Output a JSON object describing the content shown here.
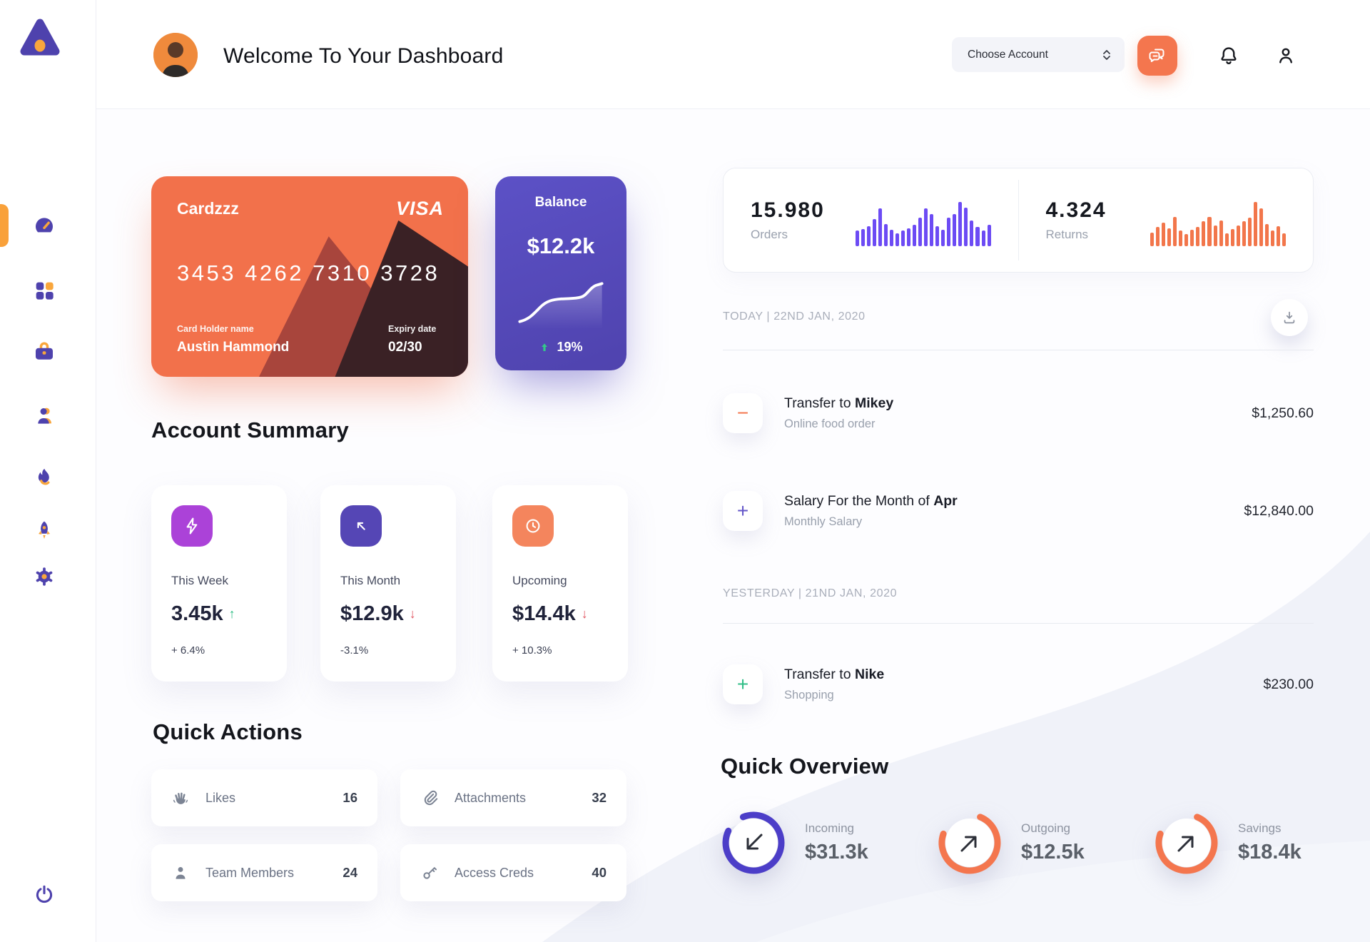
{
  "sidebar": {
    "items": [
      {
        "icon": "dashboard-icon",
        "active": true
      },
      {
        "icon": "grid-icon"
      },
      {
        "icon": "briefcase-icon"
      },
      {
        "icon": "user-icon"
      },
      {
        "icon": "flame-icon"
      },
      {
        "icon": "rocket-icon"
      },
      {
        "icon": "gear-icon"
      }
    ],
    "footer_icon": "power-icon",
    "accent_color": "#F9A13A",
    "icon_color": "#4E42AD"
  },
  "header": {
    "title": "Welcome To Your Dashboard",
    "account_select": {
      "label": "Choose Account"
    },
    "chat_icon": "chat-icon",
    "bell_icon": "bell-icon",
    "profile_icon": "profile-icon"
  },
  "credit_card": {
    "name": "Cardzzz",
    "brand": "VISA",
    "number": "3453 4262 7310 3728",
    "holder_label": "Card Holder name",
    "holder_name": "Austin Hammond",
    "expiry_label": "Expiry date",
    "expiry": "02/30",
    "color": "#F2714B"
  },
  "balance_card": {
    "title": "Balance",
    "amount": "$12.2k",
    "change": "19%",
    "change_color": "#35C789",
    "color": "#574CBE"
  },
  "stats_card": {
    "orders": {
      "value": "15.980",
      "label": "Orders"
    },
    "returns": {
      "value": "4.324",
      "label": "Returns"
    }
  },
  "chart_data": [
    {
      "type": "bar",
      "name": "orders-mini-chart",
      "color": "#6C4BF4",
      "values": [
        34,
        38,
        44,
        60,
        84,
        50,
        36,
        28,
        34,
        40,
        48,
        64,
        84,
        72,
        44,
        36,
        64,
        72,
        100,
        86,
        58,
        42,
        34,
        48
      ]
    },
    {
      "type": "bar",
      "name": "returns-mini-chart",
      "color": "#F2764B",
      "values": [
        30,
        42,
        52,
        40,
        66,
        34,
        26,
        36,
        42,
        56,
        66,
        46,
        58,
        28,
        38,
        46,
        56,
        64,
        100,
        84,
        50,
        34,
        44,
        28
      ]
    },
    {
      "type": "line",
      "name": "balance-sparkline",
      "trend": "rising",
      "change": "19%"
    }
  ],
  "account_summary": {
    "title": "Account Summary",
    "tiles": [
      {
        "icon": "lightning-icon",
        "icon_color": "#AB42D8",
        "label": "This Week",
        "value": "3.45k",
        "trend_arrow": "↑",
        "trend_color": "#2EBD85",
        "change": "+ 6.4%"
      },
      {
        "icon": "trend-arrow-icon",
        "icon_color": "#5546B5",
        "label": "This Month",
        "value": "$12.9k",
        "trend_arrow": "↓",
        "trend_color": "#E0525E",
        "change": "-3.1%"
      },
      {
        "icon": "clock-icon",
        "icon_color": "#F4855D",
        "label": "Upcoming",
        "value": "$14.4k",
        "trend_arrow": "↓",
        "trend_color": "#E0525E",
        "change": "+ 10.3%"
      }
    ]
  },
  "quick_actions": {
    "title": "Quick Actions",
    "items": [
      {
        "icon": "waving-hand-icon",
        "label": "Likes",
        "count": "16"
      },
      {
        "icon": "paperclip-icon",
        "label": "Attachments",
        "count": "32"
      },
      {
        "icon": "team-member-icon",
        "label": "Team Members",
        "count": "24"
      },
      {
        "icon": "key-icon",
        "label": "Access Creds",
        "count": "40"
      }
    ]
  },
  "transactions": {
    "groups": [
      {
        "date_label": "TODAY | 22ND JAN, 2020",
        "items": [
          {
            "icon_glyph": "−",
            "icon_color": "#F4764E",
            "title_prefix": "Transfer to ",
            "title_emphasis": "Mikey",
            "subtitle": "Online food order",
            "amount": "$1,250.60"
          },
          {
            "icon_glyph": "+",
            "icon_color": "#6355C8",
            "title_prefix": "Salary For the Month of ",
            "title_emphasis": "Apr",
            "subtitle": "Monthly Salary",
            "amount": "$12,840.00"
          }
        ]
      },
      {
        "date_label": "YESTERDAY | 21ND JAN, 2020",
        "items": [
          {
            "icon_glyph": "+",
            "icon_color": "#2EBD85",
            "title_prefix": "Transfer to ",
            "title_emphasis": "Nike",
            "subtitle": "Shopping",
            "amount": "$230.00"
          }
        ]
      }
    ]
  },
  "quick_overview": {
    "title": "Quick Overview",
    "items": [
      {
        "label": "Incoming",
        "value": "$31.3k",
        "ring_color": "#4C3EC8",
        "progress": 0.88,
        "arrow": "down-left-arrow-icon"
      },
      {
        "label": "Outgoing",
        "value": "$12.5k",
        "ring_color": "#F4764E",
        "progress": 0.74,
        "arrow": "up-right-arrow-icon"
      },
      {
        "label": "Savings",
        "value": "$18.4k",
        "ring_color": "#F4764E",
        "progress": 0.74,
        "arrow": "up-right-arrow-icon"
      }
    ]
  }
}
